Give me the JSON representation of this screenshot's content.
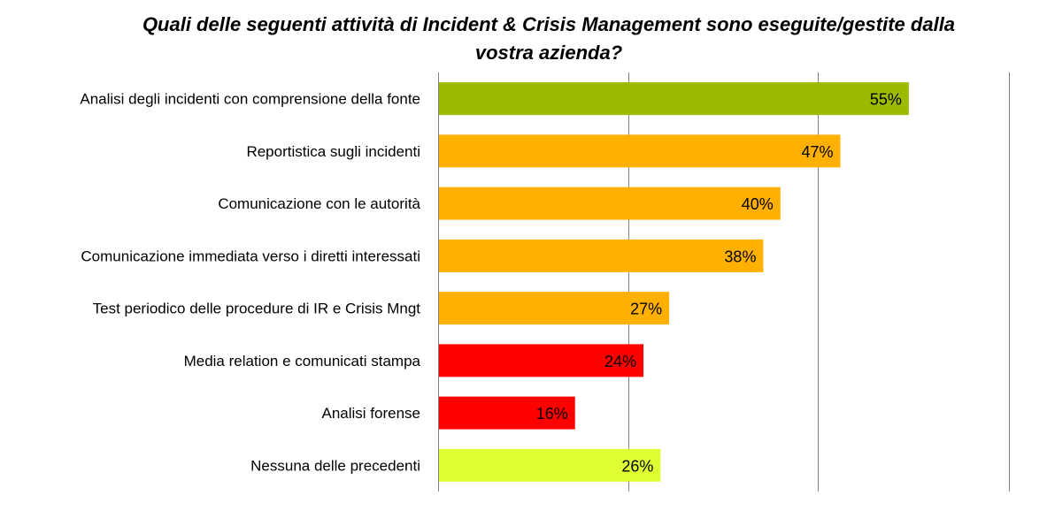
{
  "chart_data": {
    "type": "bar",
    "orientation": "horizontal",
    "title_lines": [
      "Quali delle seguenti attività di Incident & Crisis Management sono eseguite/gestite dalla",
      "vostra azienda?"
    ],
    "categories": [
      "Analisi degli incidenti con comprensione della fonte",
      "Reportistica sugli incidenti",
      "Comunicazione con le autorità",
      "Comunicazione immediata verso i diretti interessati",
      "Test periodico delle procedure di IR e Crisis Mngt",
      "Media relation e comunicati stampa",
      "Analisi forense",
      "Nessuna delle precedenti"
    ],
    "values": [
      55,
      47,
      40,
      38,
      27,
      24,
      16,
      26
    ],
    "value_labels": [
      "55%",
      "47%",
      "40%",
      "38%",
      "27%",
      "24%",
      "16%",
      "26%"
    ],
    "colors": [
      "#9bbb00",
      "#ffb000",
      "#ffb000",
      "#ffb000",
      "#ffb000",
      "#ff0000",
      "#ff0000",
      "#e0ff33"
    ],
    "xlim": [
      0,
      66.7
    ],
    "gridlines": [
      0,
      22.2,
      44.4,
      66.7
    ],
    "grid": true,
    "legend": "none"
  }
}
